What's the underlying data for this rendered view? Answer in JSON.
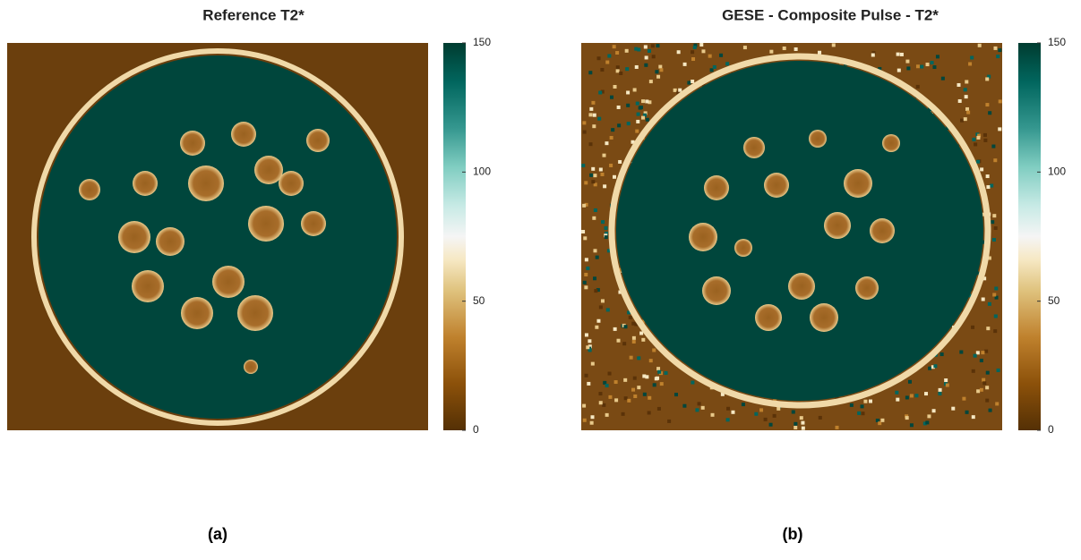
{
  "panels": [
    {
      "title": "Reference T2*",
      "colorbar": {
        "ticks": [
          0,
          50,
          100,
          150
        ]
      },
      "label": "(a)"
    },
    {
      "title": "GESE - Composite Pulse - T2*",
      "colorbar": {
        "ticks": [
          0,
          50,
          100,
          150
        ]
      },
      "label": "(b)"
    }
  ]
}
